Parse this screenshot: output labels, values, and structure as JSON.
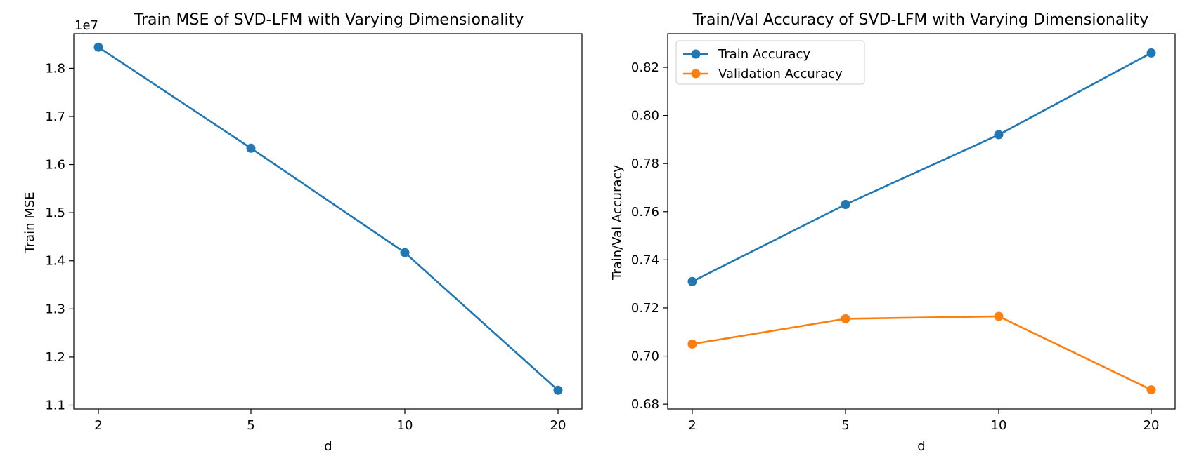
{
  "chart_data": [
    {
      "type": "line",
      "title": "Train MSE of SVD-LFM with Varying Dimensionality",
      "xlabel": "d",
      "ylabel": "Train MSE",
      "y_offset_label": "1e7",
      "categories": [
        "2",
        "5",
        "10",
        "20"
      ],
      "yticks": [
        "1.1",
        "1.2",
        "1.3",
        "1.4",
        "1.5",
        "1.6",
        "1.7",
        "1.8"
      ],
      "ylim": [
        1.092,
        1.872
      ],
      "grid": false,
      "legend": null,
      "series": [
        {
          "color": "#1f77b4",
          "values": [
            1.844,
            1.634,
            1.417,
            1.131
          ]
        }
      ]
    },
    {
      "type": "line",
      "title": "Train/Val Accuracy of SVD-LFM with Varying Dimensionality",
      "xlabel": "d",
      "ylabel": "Train/Val Accuracy",
      "categories": [
        "2",
        "5",
        "10",
        "20"
      ],
      "yticks": [
        "0.68",
        "0.70",
        "0.72",
        "0.74",
        "0.76",
        "0.78",
        "0.80",
        "0.82"
      ],
      "ylim": [
        0.678,
        0.834
      ],
      "grid": false,
      "legend": "top-left",
      "series": [
        {
          "name": "Train Accuracy",
          "color": "#1f77b4",
          "values": [
            0.731,
            0.763,
            0.792,
            0.826
          ]
        },
        {
          "name": "Validation Accuracy",
          "color": "#ff7f0e",
          "values": [
            0.705,
            0.7155,
            0.7165,
            0.686
          ]
        }
      ]
    }
  ]
}
